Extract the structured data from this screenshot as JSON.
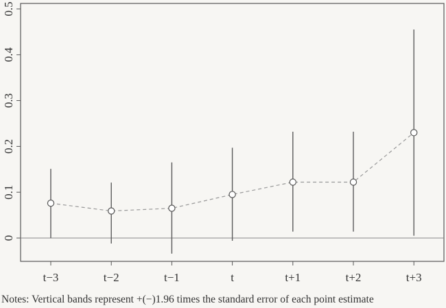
{
  "chart_data": {
    "type": "scatter",
    "x": [
      "t−3",
      "t−2",
      "t−1",
      "t",
      "t+1",
      "t+2",
      "t+3"
    ],
    "points": [
      {
        "x": "t−3",
        "y": 0.076,
        "lower": 0.0,
        "upper": 0.151
      },
      {
        "x": "t−2",
        "y": 0.059,
        "lower": -0.012,
        "upper": 0.121
      },
      {
        "x": "t−1",
        "y": 0.065,
        "lower": -0.034,
        "upper": 0.165
      },
      {
        "x": "t",
        "y": 0.095,
        "lower": -0.006,
        "upper": 0.197
      },
      {
        "x": "t+1",
        "y": 0.122,
        "lower": 0.014,
        "upper": 0.232
      },
      {
        "x": "t+2",
        "y": 0.122,
        "lower": 0.014,
        "upper": 0.232
      },
      {
        "x": "t+3",
        "y": 0.23,
        "lower": 0.005,
        "upper": 0.455
      }
    ],
    "y_ticks": [
      0,
      0.1,
      0.2,
      0.3,
      0.4,
      0.5
    ],
    "y_tick_labels": [
      "0",
      "0.1",
      "0.2",
      "0.3",
      "0.4",
      "0.5"
    ],
    "ylim": [
      -0.05,
      0.51
    ],
    "reference_line_y": 0,
    "connector_style": "dashed",
    "grid": false,
    "title": "",
    "xlabel": "",
    "ylabel": "",
    "colors": {
      "background": "#f7f6f3",
      "axis": "#555555",
      "error_bar": "#5a5a5a",
      "connector": "#999999",
      "marker_fill": "#ffffff",
      "marker_stroke": "#555555",
      "reference_line": "#888888"
    }
  },
  "notes": "Notes: Vertical bands represent +(−)1.96 times the standard error of each point estimate"
}
